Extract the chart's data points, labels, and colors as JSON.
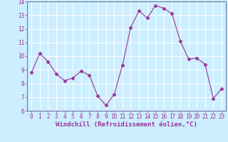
{
  "x": [
    0,
    1,
    2,
    3,
    4,
    5,
    6,
    7,
    8,
    9,
    10,
    11,
    12,
    13,
    14,
    15,
    16,
    17,
    18,
    19,
    20,
    21,
    22,
    23
  ],
  "y": [
    8.8,
    10.2,
    9.6,
    8.7,
    8.2,
    8.4,
    8.9,
    8.6,
    7.1,
    6.4,
    7.2,
    9.3,
    12.1,
    13.3,
    12.8,
    13.7,
    13.5,
    13.1,
    11.1,
    9.8,
    9.85,
    9.4,
    6.9,
    7.6
  ],
  "line_color": "#993399",
  "marker": "D",
  "marker_size": 2.5,
  "bg_color": "#cceeff",
  "grid_color": "#aaddcc",
  "xlabel": "Windchill (Refroidissement éolien,°C)",
  "ylim": [
    6,
    14
  ],
  "xlim": [
    -0.5,
    23.5
  ],
  "yticks": [
    6,
    7,
    8,
    9,
    10,
    11,
    12,
    13,
    14
  ],
  "xticks": [
    0,
    1,
    2,
    3,
    4,
    5,
    6,
    7,
    8,
    9,
    10,
    11,
    12,
    13,
    14,
    15,
    16,
    17,
    18,
    19,
    20,
    21,
    22,
    23
  ],
  "tick_color": "#993399",
  "tick_fontsize": 5.5,
  "xlabel_fontsize": 6.5,
  "spine_color": "#993399",
  "border_color": "#666699"
}
